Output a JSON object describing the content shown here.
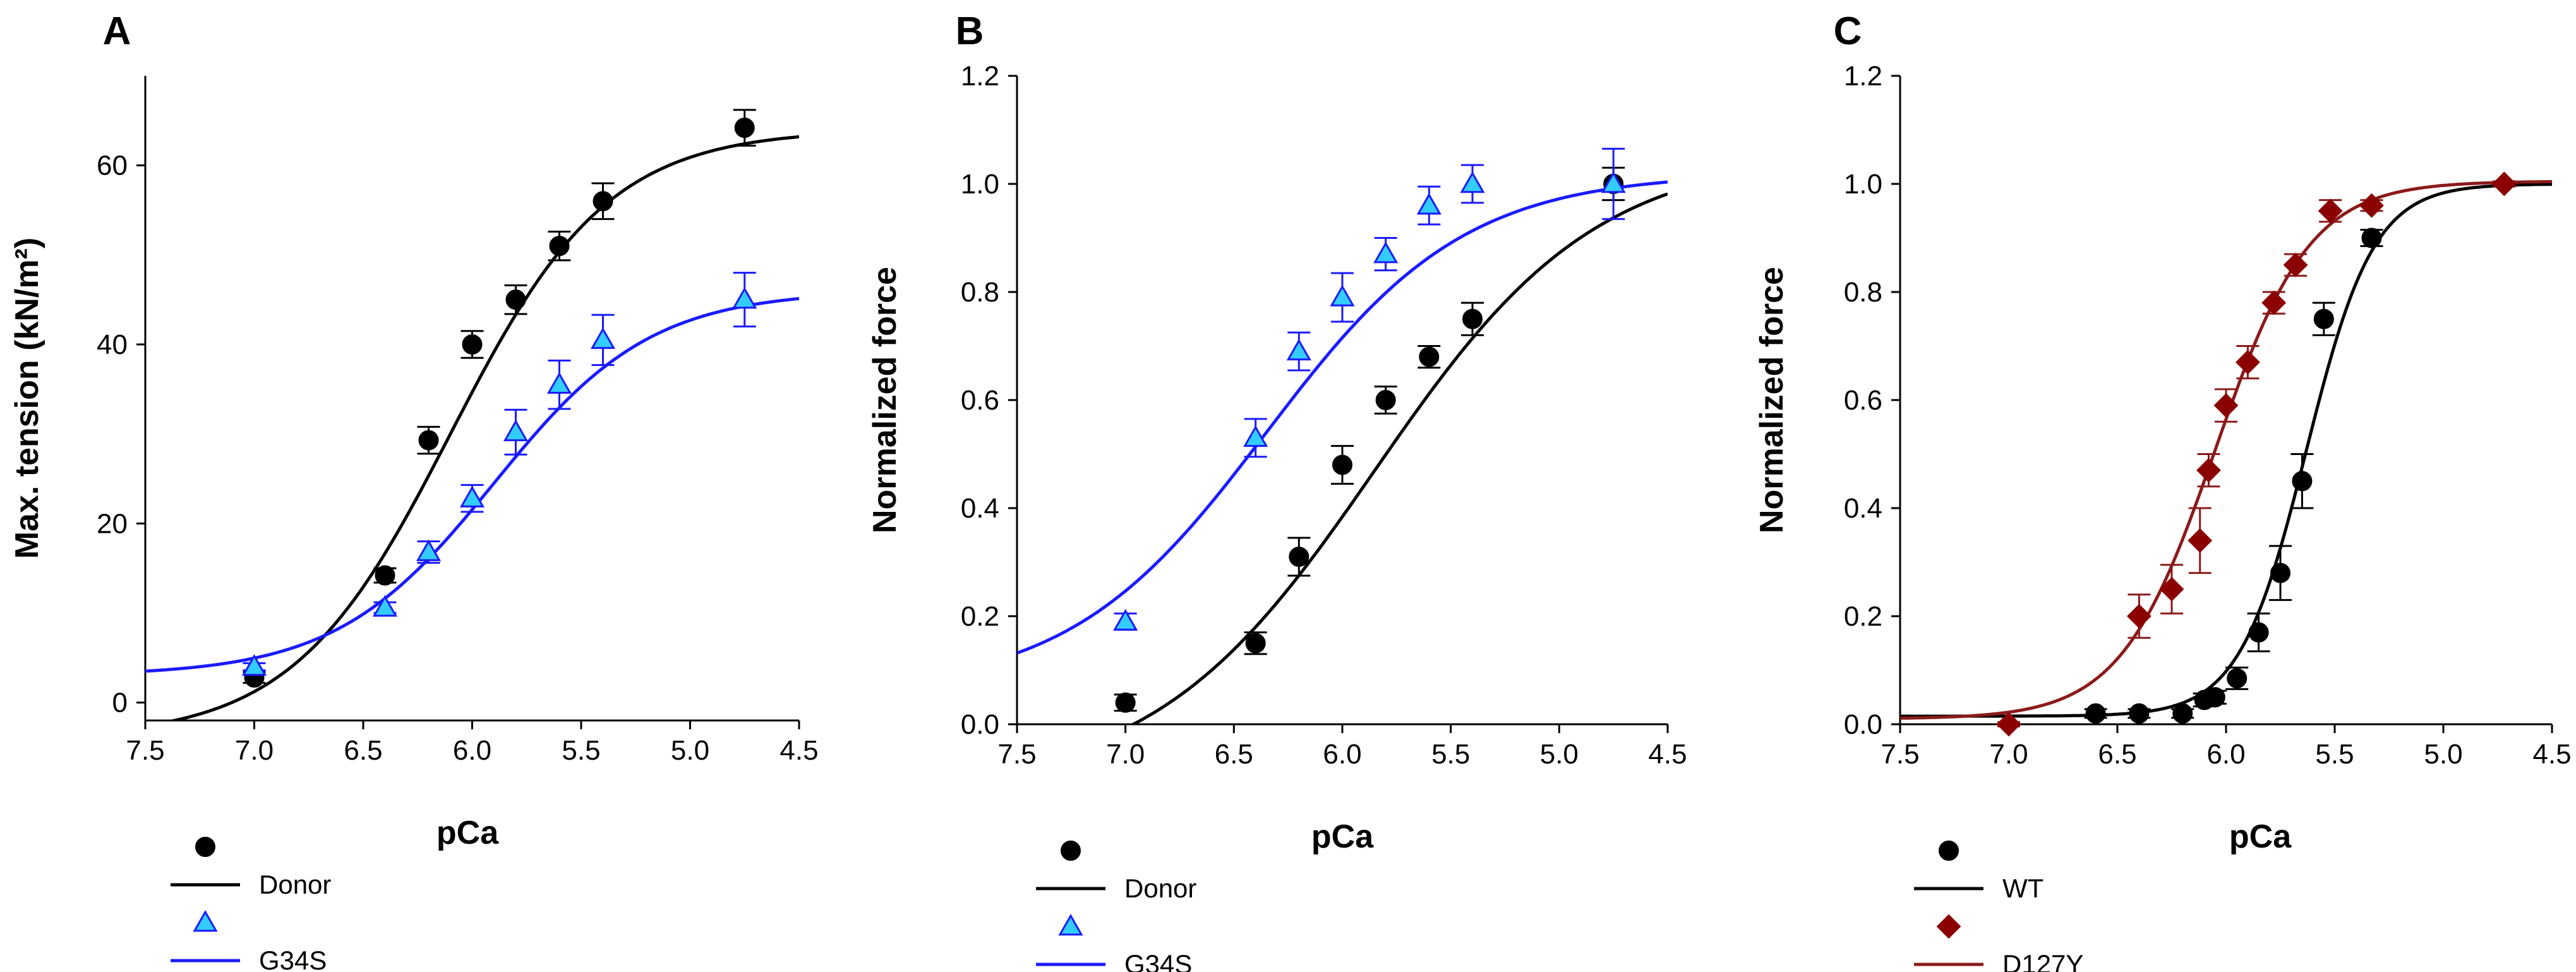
{
  "figure": {
    "background": "#ffffff"
  },
  "chart_data": [
    {
      "type": "scatter",
      "panel": "A",
      "xlabel": "pCa",
      "ylabel": "Max. tension (kN/m²)",
      "xlim": [
        7.5,
        4.5
      ],
      "ylim": [
        -2,
        70
      ],
      "xticks": [
        7.5,
        7.0,
        6.5,
        6.0,
        5.5,
        5.0,
        4.5
      ],
      "xtick_labels": [
        "7.5",
        "7.0",
        "6.5",
        "6.0",
        "5.5",
        "5.0",
        "4.5"
      ],
      "yticks": [
        0,
        20,
        40,
        60
      ],
      "ytick_labels": [
        "0",
        "20",
        "40",
        "60"
      ],
      "series": [
        {
          "name": "Donor",
          "color": "#000000",
          "marker": "circle",
          "line_color": "#000000",
          "x": [
            7.0,
            6.4,
            6.2,
            6.0,
            5.8,
            5.6,
            5.4,
            4.75
          ],
          "y": [
            2.8,
            14.2,
            29.3,
            40.0,
            45.0,
            51.0,
            56.0,
            64.2
          ],
          "err": [
            0.6,
            0.8,
            1.5,
            1.5,
            1.6,
            1.6,
            2.0,
            2.0
          ],
          "fit": {
            "bottom": -4,
            "top": 64,
            "pca50": 6.1,
            "hill": 1.2
          }
        },
        {
          "name": "G34S",
          "color": "#33ccff",
          "marker": "triangle",
          "line_color": "#1a1aff",
          "x": [
            7.0,
            6.4,
            6.2,
            6.0,
            5.8,
            5.6,
            5.4,
            4.75
          ],
          "y": [
            4.0,
            10.6,
            16.8,
            22.8,
            30.2,
            35.5,
            40.5,
            45.0
          ],
          "err": [
            0.4,
            0.6,
            1.2,
            1.5,
            2.5,
            2.7,
            2.8,
            3.0
          ],
          "fit": {
            "bottom": 3,
            "top": 46,
            "pca50": 5.9,
            "hill": 1.2
          }
        }
      ]
    },
    {
      "type": "scatter",
      "panel": "B",
      "xlabel": "pCa",
      "ylabel": "Normalized force",
      "xlim": [
        7.5,
        4.5
      ],
      "ylim": [
        0,
        1.2
      ],
      "xticks": [
        7.5,
        7.0,
        6.5,
        6.0,
        5.5,
        5.0,
        4.5
      ],
      "xtick_labels": [
        "7.5",
        "7.0",
        "6.5",
        "6.0",
        "5.5",
        "5.0",
        "4.5"
      ],
      "yticks": [
        0.0,
        0.2,
        0.4,
        0.6,
        0.8,
        1.0,
        1.2
      ],
      "ytick_labels": [
        "0.0",
        "0.2",
        "0.4",
        "0.6",
        "0.8",
        "1.0",
        "1.2"
      ],
      "series": [
        {
          "name": "Donor",
          "color": "#000000",
          "marker": "circle",
          "line_color": "#000000",
          "x": [
            7.0,
            6.4,
            6.2,
            6.0,
            5.8,
            5.6,
            5.4,
            4.75
          ],
          "y": [
            0.04,
            0.15,
            0.31,
            0.48,
            0.6,
            0.68,
            0.75,
            1.0
          ],
          "err": [
            0.015,
            0.02,
            0.035,
            0.035,
            0.025,
            0.02,
            0.03,
            0.03
          ],
          "fit": {
            "bottom": -0.12,
            "top": 1.06,
            "pca50": 5.85,
            "hill": 0.85
          }
        },
        {
          "name": "G34S",
          "color": "#33ccff",
          "marker": "triangle",
          "line_color": "#1a1aff",
          "x": [
            7.0,
            6.4,
            6.2,
            6.0,
            5.8,
            5.6,
            5.4,
            4.75
          ],
          "y": [
            0.19,
            0.53,
            0.69,
            0.79,
            0.87,
            0.96,
            1.0,
            1.0
          ],
          "err": [
            0.015,
            0.035,
            0.035,
            0.045,
            0.03,
            0.035,
            0.035,
            0.065
          ],
          "fit": {
            "bottom": 0.06,
            "top": 1.02,
            "pca50": 6.35,
            "hill": 0.95
          }
        }
      ]
    },
    {
      "type": "scatter",
      "panel": "C",
      "xlabel": "pCa",
      "ylabel": "Normalized force",
      "xlim": [
        7.5,
        4.5
      ],
      "ylim": [
        0,
        1.2
      ],
      "xticks": [
        7.5,
        7.0,
        6.5,
        6.0,
        5.5,
        5.0,
        4.5
      ],
      "xtick_labels": [
        "7.5",
        "7.0",
        "6.5",
        "6.0",
        "5.5",
        "5.0",
        "4.5"
      ],
      "yticks": [
        0.0,
        0.2,
        0.4,
        0.6,
        0.8,
        1.0,
        1.2
      ],
      "ytick_labels": [
        "0.0",
        "0.2",
        "0.4",
        "0.6",
        "0.8",
        "1.0",
        "1.2"
      ],
      "series": [
        {
          "name": "WT",
          "color": "#000000",
          "marker": "circle",
          "line_color": "#000000",
          "x": [
            6.6,
            6.4,
            6.2,
            6.1,
            6.05,
            5.95,
            5.85,
            5.75,
            5.65,
            5.55,
            5.33
          ],
          "y": [
            0.02,
            0.02,
            0.02,
            0.045,
            0.05,
            0.085,
            0.17,
            0.28,
            0.45,
            0.75,
            0.9
          ],
          "err": [
            0.008,
            0.008,
            0.008,
            0.012,
            0.012,
            0.02,
            0.035,
            0.05,
            0.05,
            0.03,
            0.015
          ],
          "fit": {
            "bottom": 0.015,
            "top": 1.0,
            "pca50": 5.63,
            "hill": 2.8
          }
        },
        {
          "name": "D127Y",
          "color": "#8b0000",
          "marker": "diamond",
          "line_color": "#8b1a1a",
          "x": [
            7.0,
            6.4,
            6.25,
            6.12,
            6.08,
            6.0,
            5.9,
            5.78,
            5.68,
            5.52,
            5.33,
            4.72
          ],
          "y": [
            0.0,
            0.2,
            0.25,
            0.34,
            0.47,
            0.59,
            0.67,
            0.78,
            0.85,
            0.95,
            0.96,
            1.0
          ],
          "err": [
            0.004,
            0.04,
            0.045,
            0.06,
            0.03,
            0.03,
            0.03,
            0.02,
            0.02,
            0.02,
            0.01,
            0.005
          ],
          "fit": {
            "bottom": 0.01,
            "top": 1.005,
            "pca50": 6.05,
            "hill": 2.0
          }
        }
      ]
    }
  ]
}
